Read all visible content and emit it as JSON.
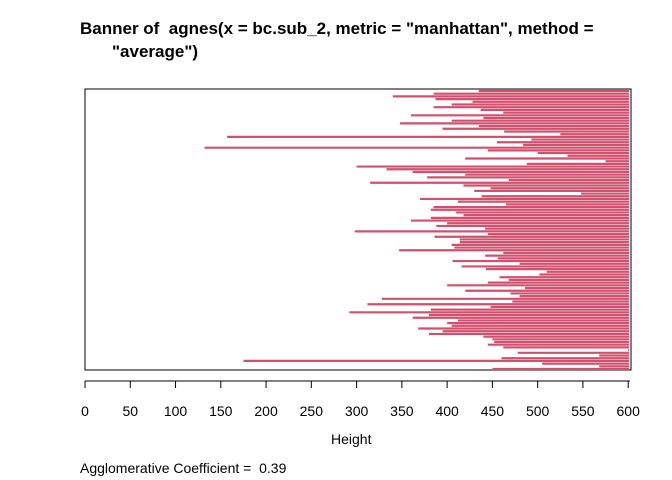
{
  "chart_data": {
    "type": "bar",
    "orientation": "horizontal",
    "title_line1": "Banner of  agnes(x = bc.sub_2, metric = \"manhattan\", method =",
    "title_line2": "\"average\")",
    "xlabel": "Height",
    "xlim": [
      0,
      602
    ],
    "xticks": [
      "0",
      "50",
      "100",
      "150",
      "200",
      "250",
      "300",
      "350",
      "400",
      "450",
      "500",
      "550",
      "600"
    ],
    "bar_color": "#D2506E",
    "footer": "Agglomerative Coefficient =  0.39",
    "heights": [
      435,
      385,
      340,
      387,
      428,
      405,
      385,
      437,
      462,
      360,
      440,
      405,
      348,
      435,
      395,
      463,
      525,
      157,
      493,
      455,
      484,
      132,
      445,
      500,
      533,
      420,
      575,
      488,
      300,
      333,
      362,
      420,
      378,
      468,
      315,
      418,
      448,
      430,
      548,
      438,
      370,
      412,
      465,
      385,
      382,
      410,
      418,
      382,
      360,
      400,
      388,
      442,
      298,
      445,
      386,
      414,
      414,
      405,
      408,
      347,
      462,
      442,
      456,
      406,
      480,
      416,
      443,
      510,
      502,
      458,
      468,
      445,
      400,
      486,
      420,
      470,
      480,
      328,
      472,
      312,
      448,
      382,
      292,
      380,
      362,
      412,
      400,
      405,
      368,
      395,
      380,
      440,
      450,
      452,
      445,
      462,
      600,
      478,
      568,
      460,
      175,
      505,
      568,
      450
    ]
  }
}
